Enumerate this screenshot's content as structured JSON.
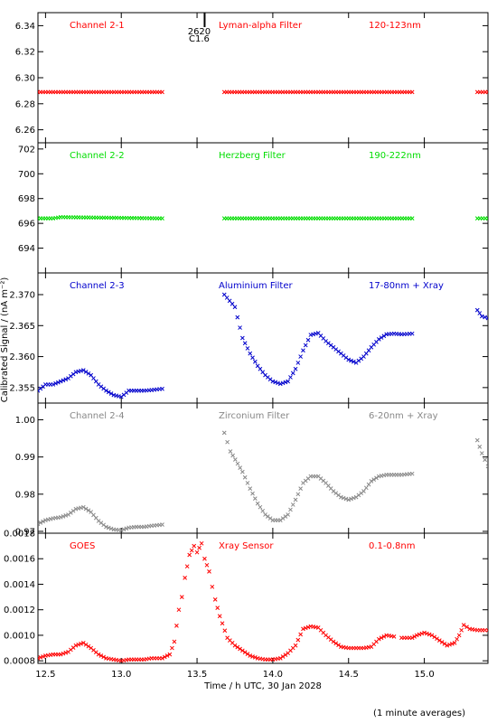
{
  "chart_data": {
    "type": "scatter",
    "x_axis": {
      "label": "Time / h UTC, 30 Jan 2028",
      "range": [
        12.45,
        15.42
      ],
      "ticks": [
        12.5,
        13.0,
        13.5,
        14.0,
        14.5,
        15.0
      ],
      "tick_labels": [
        "12.5",
        "13.0",
        "13.5",
        "14.0",
        "14.5",
        "15.0"
      ]
    },
    "ylabel": "Calibrated Signal / (nA m⁻²)",
    "footnote": "(1 minute averages)",
    "flare_event": {
      "x": 13.55,
      "label_number": "2620",
      "label_class": "C1.6"
    },
    "colors": {
      "red": "#ff0000",
      "green": "#00dd00",
      "blue": "#0000cc",
      "gray": "#888888",
      "black": "#000000"
    },
    "panels": [
      {
        "channel": "Channel 2-1",
        "filter": "Lyman-alpha Filter",
        "band": "120-123nm",
        "color": "#ff0000",
        "ylim": [
          6.25,
          6.35
        ],
        "yticks": [
          6.26,
          6.28,
          6.3,
          6.32,
          6.34
        ],
        "ytick_labels": [
          "6.26",
          "6.28",
          "6.30",
          "6.32",
          "6.34"
        ],
        "series": [
          {
            "x": [
              12.45,
              13.27
            ],
            "y": [
              6.289,
              6.289
            ]
          },
          {
            "x": [
              13.68,
              14.92
            ],
            "y": [
              6.289,
              6.289
            ]
          },
          {
            "x": [
              15.35,
              15.42
            ],
            "y": [
              6.289,
              6.289
            ]
          }
        ]
      },
      {
        "channel": "Channel 2-2",
        "filter": "Herzberg Filter",
        "band": "190-222nm",
        "color": "#00dd00",
        "ylim": [
          692.0,
          702.5
        ],
        "yticks": [
          694,
          696,
          698,
          700,
          702
        ],
        "ytick_labels": [
          "694",
          "696",
          "698",
          "700",
          "702"
        ],
        "series": [
          {
            "x": [
              12.45,
              12.55,
              12.6,
              13.27
            ],
            "y": [
              696.4,
              696.4,
              696.5,
              696.4
            ]
          },
          {
            "x": [
              13.68,
              14.92
            ],
            "y": [
              696.4,
              696.4
            ]
          },
          {
            "x": [
              15.35,
              15.42
            ],
            "y": [
              696.4,
              696.4
            ]
          }
        ]
      },
      {
        "channel": "Channel 2-3",
        "filter": "Aluminium Filter",
        "band": "17-80nm + Xray",
        "color": "#0000cc",
        "ylim": [
          2.3525,
          2.3735
        ],
        "yticks": [
          2.355,
          2.36,
          2.365,
          2.37
        ],
        "ytick_labels": [
          "2.355",
          "2.360",
          "2.365",
          "2.370"
        ],
        "series": [
          {
            "x": [
              12.45,
              12.5,
              12.55,
              12.6,
              12.65,
              12.7,
              12.75,
              12.8,
              12.85,
              12.9,
              12.95,
              13.0,
              13.05,
              13.1,
              13.15,
              13.2,
              13.27
            ],
            "y": [
              2.3545,
              2.3555,
              2.3555,
              2.356,
              2.3565,
              2.3575,
              2.3578,
              2.357,
              2.3555,
              2.3545,
              2.3538,
              2.3535,
              2.3545,
              2.3545,
              2.3545,
              2.3546,
              2.3548
            ]
          },
          {
            "x": [
              13.68,
              13.75,
              13.8,
              13.85,
              13.9,
              13.95,
              14.0,
              14.05,
              14.1,
              14.15,
              14.2,
              14.25,
              14.3,
              14.35,
              14.4,
              14.45,
              14.5,
              14.55,
              14.6,
              14.65,
              14.7,
              14.75,
              14.8,
              14.85,
              14.92
            ],
            "y": [
              2.37,
              2.368,
              2.363,
              2.3605,
              2.3585,
              2.357,
              2.356,
              2.3556,
              2.356,
              2.358,
              2.361,
              2.3635,
              2.3638,
              2.3625,
              2.3615,
              2.3605,
              2.3595,
              2.359,
              2.36,
              2.3615,
              2.3628,
              2.3636,
              2.3637,
              2.3636,
              2.3637
            ]
          },
          {
            "x": [
              15.35,
              15.38,
              15.42
            ],
            "y": [
              2.3675,
              2.3665,
              2.3662
            ]
          }
        ]
      },
      {
        "channel": "Channel 2-4",
        "filter": "Zirconium Filter",
        "band": "6-20nm + Xray",
        "color": "#888888",
        "ylim": [
          0.9695,
          1.0045
        ],
        "yticks": [
          0.97,
          0.98,
          0.99,
          1.0
        ],
        "ytick_labels": [
          "0.97",
          "0.98",
          "0.99",
          "1.00"
        ],
        "series": [
          {
            "x": [
              12.45,
              12.5,
              12.55,
              12.6,
              12.65,
              12.7,
              12.75,
              12.8,
              12.85,
              12.9,
              12.95,
              13.0,
              13.05,
              13.1,
              13.15,
              13.2,
              13.27
            ],
            "y": [
              0.972,
              0.973,
              0.9735,
              0.9738,
              0.9745,
              0.976,
              0.9765,
              0.9752,
              0.9728,
              0.9712,
              0.9705,
              0.9703,
              0.971,
              0.9712,
              0.9712,
              0.9715,
              0.9718
            ]
          },
          {
            "x": [
              13.68,
              13.72,
              13.8,
              13.85,
              13.9,
              13.95,
              14.0,
              14.05,
              14.1,
              14.15,
              14.2,
              14.25,
              14.3,
              14.35,
              14.4,
              14.45,
              14.5,
              14.55,
              14.6,
              14.65,
              14.7,
              14.75,
              14.8,
              14.85,
              14.92
            ],
            "y": [
              0.9965,
              0.9915,
              0.986,
              0.9815,
              0.9775,
              0.9745,
              0.973,
              0.973,
              0.9745,
              0.9785,
              0.983,
              0.9848,
              0.9848,
              0.983,
              0.9808,
              0.9792,
              0.9785,
              0.9792,
              0.9808,
              0.9835,
              0.9848,
              0.9852,
              0.9852,
              0.9852,
              0.9855
            ]
          },
          {
            "x": [
              15.35,
              15.38,
              15.42
            ],
            "y": [
              0.9945,
              0.991,
              0.9875
            ]
          }
        ]
      },
      {
        "channel": "GOES",
        "filter": "Xray Sensor",
        "band": "0.1-0.8nm",
        "color": "#ff0000",
        "ylim": [
          0.00078,
          0.0018
        ],
        "yticks": [
          0.0008,
          0.001,
          0.0012,
          0.0014,
          0.0016,
          0.0018
        ],
        "ytick_labels": [
          "0.0008",
          "0.0010",
          "0.0012",
          "0.0014",
          "0.0016",
          "0.0018"
        ],
        "series": [
          {
            "x": [
              12.45,
              12.5,
              12.55,
              12.6,
              12.65,
              12.7,
              12.75,
              12.8,
              12.85,
              12.9,
              12.95,
              13.0,
              13.05,
              13.1,
              13.15,
              13.2,
              13.27,
              13.32,
              13.35,
              13.38,
              13.4,
              13.42,
              13.45,
              13.48,
              13.5,
              13.53,
              13.55,
              13.58,
              13.6,
              13.62,
              13.65,
              13.7,
              13.75,
              13.8,
              13.85,
              13.9,
              13.95,
              14.0,
              14.05,
              14.1,
              14.15,
              14.2,
              14.25,
              14.3,
              14.35,
              14.4,
              14.45,
              14.5,
              14.55,
              14.6,
              14.65,
              14.7,
              14.75,
              14.8
            ],
            "y": [
              0.00082,
              0.00084,
              0.00085,
              0.00085,
              0.00087,
              0.00092,
              0.00094,
              0.0009,
              0.00085,
              0.00082,
              0.00081,
              0.0008,
              0.00081,
              0.00081,
              0.00081,
              0.00082,
              0.00082,
              0.00085,
              0.00095,
              0.0012,
              0.0013,
              0.00145,
              0.00163,
              0.0017,
              0.00165,
              0.00172,
              0.0016,
              0.0015,
              0.00138,
              0.00128,
              0.00115,
              0.00098,
              0.00092,
              0.00088,
              0.00084,
              0.00082,
              0.00081,
              0.00081,
              0.00082,
              0.00086,
              0.00092,
              0.00105,
              0.00107,
              0.00106,
              0.001,
              0.00095,
              0.00091,
              0.0009,
              0.0009,
              0.0009,
              0.00091,
              0.00097,
              0.001,
              0.00099
            ]
          },
          {
            "x": [
              14.85,
              14.92,
              14.95,
              15.0,
              15.05,
              15.1,
              15.15,
              15.2,
              15.23,
              15.26,
              15.3,
              15.35,
              15.4,
              15.42
            ],
            "y": [
              0.00098,
              0.00098,
              0.001,
              0.00102,
              0.001,
              0.00096,
              0.00092,
              0.00094,
              0.001,
              0.00108,
              0.00105,
              0.00104,
              0.00104,
              0.00104
            ]
          }
        ]
      }
    ]
  }
}
